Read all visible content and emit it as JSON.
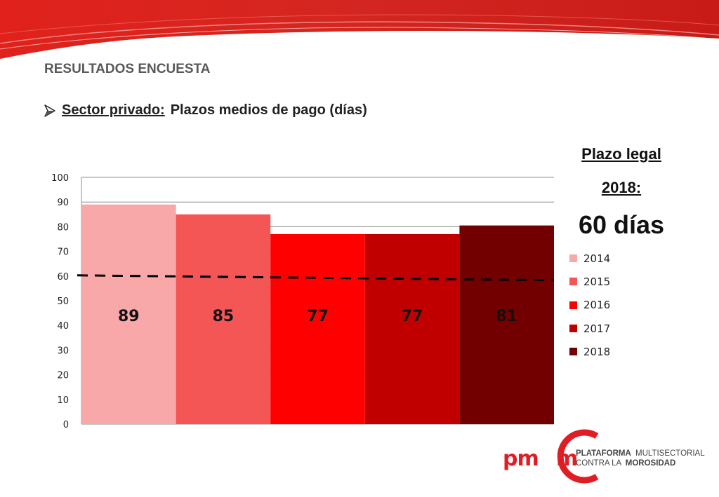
{
  "header": {
    "section_title": "RESULTADOS ENCUESTA",
    "subtitle_underlined": "Sector privado:",
    "subtitle_rest": "Plazos medios de pago (días)"
  },
  "legal": {
    "label_line1": "Plazo legal",
    "label_line2": "2018:",
    "value": "60 días"
  },
  "colors": {
    "banner": "#d9231f",
    "accent": "#e11d24"
  },
  "chart_data": {
    "type": "bar",
    "categories": [
      "2014",
      "2015",
      "2016",
      "2017",
      "2018"
    ],
    "series": [
      {
        "name": "2014",
        "value": 89,
        "label": "89",
        "color": "#f8a8a8"
      },
      {
        "name": "2015",
        "value": 85,
        "label": "85",
        "color": "#f45555"
      },
      {
        "name": "2016",
        "value": 77,
        "label": "77",
        "color": "#fe0000"
      },
      {
        "name": "2017",
        "value": 77,
        "label": "77",
        "color": "#c00000"
      },
      {
        "name": "2018",
        "value": 80.5,
        "label": "81",
        "color": "#720000"
      }
    ],
    "ylim": [
      0,
      100
    ],
    "yticks": [
      "0",
      "10",
      "20",
      "30",
      "40",
      "50",
      "60",
      "70",
      "80",
      "90",
      "100"
    ],
    "reference_line": {
      "value": 60,
      "style": "dashed"
    },
    "grid": true,
    "legend_position": "right"
  },
  "logo": {
    "mark": "pmcm",
    "line1_bold": "PLATAFORMA",
    "line1_rest": "MULTISECTORIAL",
    "line2_rest": "CONTRA LA",
    "line2_bold": "MOROSIDAD"
  }
}
